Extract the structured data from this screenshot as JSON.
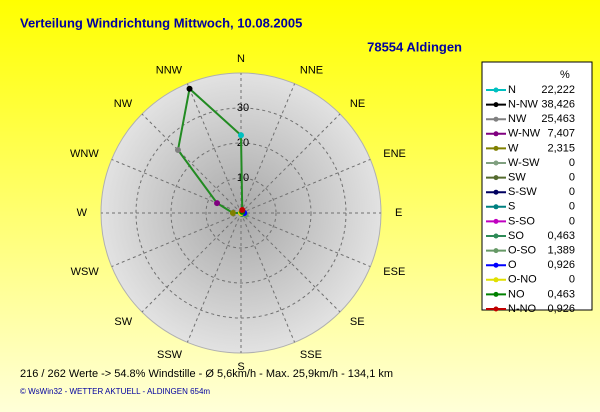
{
  "chart_data": {
    "type": "radar",
    "title": "Verteilung Windrichtung   Mittwoch, 10.08.2005",
    "subtitle": "78554 Aldingen",
    "directions": [
      "N",
      "NNE",
      "NE",
      "ENE",
      "E",
      "ESE",
      "SE",
      "SSE",
      "S",
      "SSW",
      "SW",
      "WSW",
      "W",
      "WNW",
      "NW",
      "NNW"
    ],
    "legend_title": "%",
    "categories": [
      "N",
      "N-NW",
      "NW",
      "W-NW",
      "W",
      "W-SW",
      "SW",
      "S-SW",
      "S",
      "S-SO",
      "SO",
      "O-SO",
      "O",
      "O-NO",
      "NO",
      "N-NO"
    ],
    "values": [
      22.222,
      38.426,
      25.463,
      7.407,
      2.315,
      0,
      0,
      0,
      0,
      0,
      0.463,
      1.389,
      0.926,
      0,
      0.463,
      0.926
    ],
    "value_labels": [
      "22,222",
      "38,426",
      "25,463",
      "7,407",
      "2,315",
      "0",
      "0",
      "0",
      "0",
      "0",
      "0,463",
      "1,389",
      "0,926",
      "0",
      "0,463",
      "0,926"
    ],
    "colors": [
      "#00c0c0",
      "#000000",
      "#808080",
      "#800080",
      "#808000",
      "#80a080",
      "#556b2f",
      "#000060",
      "#008080",
      "#c000c0",
      "#2e8b57",
      "#669966",
      "#0000ff",
      "#e0e000",
      "#008000",
      "#c00000"
    ],
    "line_color": "#228b22",
    "rlim": [
      0,
      40
    ],
    "rticks": [
      0,
      10,
      20,
      30
    ],
    "grid": true
  },
  "footer": {
    "stats": "216 / 262 Werte  -> 54.8% Windstille   -   Ø 5,6km/h  -  Max. 25,9km/h   -   134,1 km",
    "copyright": "© WsWin32  -  WETTER AKTUELL - ALDINGEN 654m"
  }
}
